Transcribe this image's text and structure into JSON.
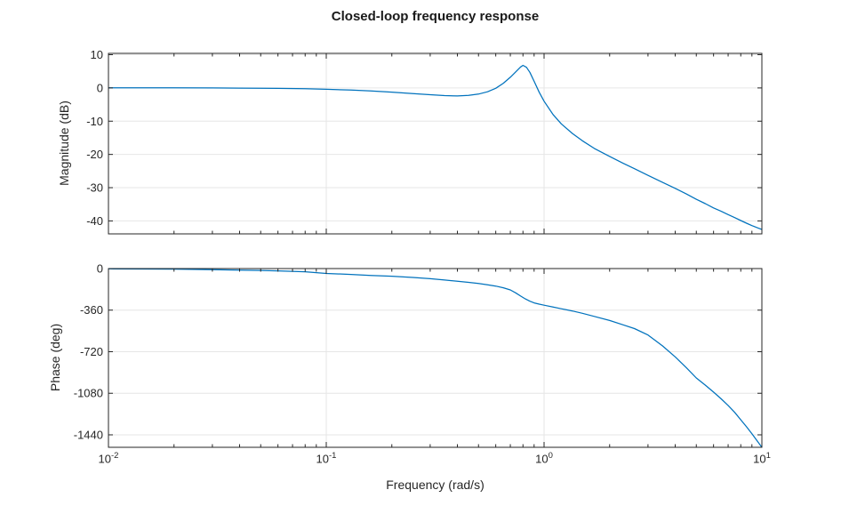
{
  "chart_data": {
    "type": "line",
    "title": "Closed-loop frequency response",
    "xlabel": "Frequency (rad/s)",
    "xscale": "log",
    "xlim": [
      0.01,
      10
    ],
    "x_tick_base": "10",
    "x_tick_exponents": [
      -2,
      -1,
      0,
      1
    ],
    "grid": "on",
    "legend": "none",
    "colors": {
      "line": "#0072BD",
      "axes": "#262626",
      "grid": "#e6e6e6",
      "background": "#ffffff"
    },
    "subplots": [
      {
        "name": "magnitude",
        "ylabel": "Magnitude (dB)",
        "ylim": [
          -43.9,
          10.4
        ],
        "yticks": [
          10,
          0,
          -10,
          -20,
          -30,
          -40
        ],
        "series": [
          {
            "name": "closed-loop-magnitude",
            "points": [
              [
                0.01,
                0.05
              ],
              [
                0.015,
                0.05
              ],
              [
                0.02,
                0.03
              ],
              [
                0.03,
                0.0
              ],
              [
                0.04,
                -0.05
              ],
              [
                0.05,
                -0.1
              ],
              [
                0.06,
                -0.15
              ],
              [
                0.08,
                -0.25
              ],
              [
                0.1,
                -0.4
              ],
              [
                0.13,
                -0.65
              ],
              [
                0.16,
                -0.9
              ],
              [
                0.2,
                -1.25
              ],
              [
                0.25,
                -1.7
              ],
              [
                0.3,
                -2.05
              ],
              [
                0.35,
                -2.3
              ],
              [
                0.4,
                -2.4
              ],
              [
                0.45,
                -2.25
              ],
              [
                0.5,
                -1.85
              ],
              [
                0.55,
                -1.15
              ],
              [
                0.6,
                -0.1
              ],
              [
                0.65,
                1.4
              ],
              [
                0.7,
                3.2
              ],
              [
                0.74,
                4.8
              ],
              [
                0.78,
                6.3
              ],
              [
                0.8,
                6.8
              ],
              [
                0.83,
                6.2
              ],
              [
                0.86,
                4.7
              ],
              [
                0.9,
                2.0
              ],
              [
                0.95,
                -1.3
              ],
              [
                1.0,
                -4.0
              ],
              [
                1.1,
                -8.0
              ],
              [
                1.2,
                -10.8
              ],
              [
                1.35,
                -13.7
              ],
              [
                1.5,
                -15.9
              ],
              [
                1.7,
                -18.2
              ],
              [
                2.0,
                -20.6
              ],
              [
                2.3,
                -22.6
              ],
              [
                2.6,
                -24.3
              ],
              [
                3.0,
                -26.3
              ],
              [
                3.5,
                -28.4
              ],
              [
                4.0,
                -30.2
              ],
              [
                4.5,
                -31.9
              ],
              [
                5.0,
                -33.5
              ],
              [
                5.5,
                -34.8
              ],
              [
                6.0,
                -36.1
              ],
              [
                6.5,
                -37.1
              ],
              [
                7.0,
                -38.1
              ],
              [
                7.5,
                -39.0
              ],
              [
                8.0,
                -39.9
              ],
              [
                8.5,
                -40.7
              ],
              [
                9.0,
                -41.4
              ],
              [
                9.5,
                -42.0
              ],
              [
                10,
                -42.6
              ]
            ]
          }
        ]
      },
      {
        "name": "phase",
        "ylabel": "Phase (deg)",
        "ylim": [
          -1548,
          0
        ],
        "yticks": [
          0,
          -360,
          -720,
          -1080,
          -1440
        ],
        "series": [
          {
            "name": "closed-loop-phase",
            "points": [
              [
                0.01,
                -2
              ],
              [
                0.02,
                -5
              ],
              [
                0.03,
                -9
              ],
              [
                0.04,
                -13
              ],
              [
                0.05,
                -16
              ],
              [
                0.06,
                -20
              ],
              [
                0.08,
                -28
              ],
              [
                0.1,
                -42
              ],
              [
                0.13,
                -51
              ],
              [
                0.16,
                -59
              ],
              [
                0.2,
                -66
              ],
              [
                0.25,
                -77
              ],
              [
                0.3,
                -88
              ],
              [
                0.35,
                -99
              ],
              [
                0.4,
                -109
              ],
              [
                0.45,
                -119
              ],
              [
                0.5,
                -129
              ],
              [
                0.55,
                -140
              ],
              [
                0.6,
                -152
              ],
              [
                0.65,
                -166
              ],
              [
                0.7,
                -185
              ],
              [
                0.74,
                -210
              ],
              [
                0.78,
                -238
              ],
              [
                0.82,
                -263
              ],
              [
                0.86,
                -283
              ],
              [
                0.9,
                -297
              ],
              [
                0.95,
                -308
              ],
              [
                1.0,
                -317
              ],
              [
                1.1,
                -333
              ],
              [
                1.2,
                -348
              ],
              [
                1.35,
                -367
              ],
              [
                1.5,
                -387
              ],
              [
                1.7,
                -414
              ],
              [
                2.0,
                -450
              ],
              [
                2.3,
                -487
              ],
              [
                2.6,
                -520
              ],
              [
                3.0,
                -575
              ],
              [
                3.5,
                -670
              ],
              [
                4.0,
                -765
              ],
              [
                4.5,
                -858
              ],
              [
                5.0,
                -947
              ],
              [
                5.5,
                -1010
              ],
              [
                6.0,
                -1070
              ],
              [
                6.5,
                -1128
              ],
              [
                7.0,
                -1185
              ],
              [
                7.5,
                -1245
              ],
              [
                8.0,
                -1310
              ],
              [
                8.5,
                -1370
              ],
              [
                9.0,
                -1430
              ],
              [
                9.5,
                -1490
              ],
              [
                10,
                -1548
              ]
            ]
          }
        ]
      }
    ]
  }
}
